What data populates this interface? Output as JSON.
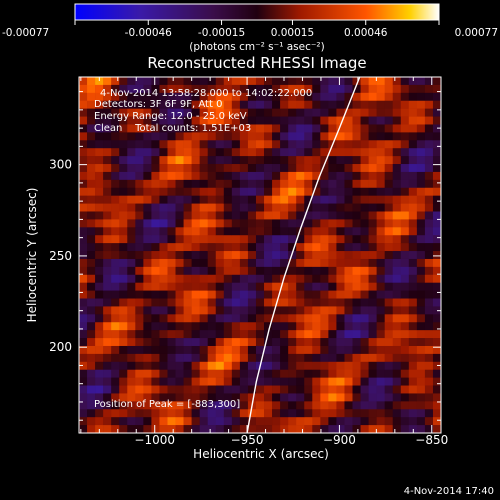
{
  "chart_data": {
    "type": "heatmap",
    "title": "Reconstructed RHESSI Image",
    "xlabel": "Heliocentric X (arcsec)",
    "ylabel": "Heliocentric Y (arcsec)",
    "xlim": [
      -1041,
      -845
    ],
    "ylim": [
      153,
      348
    ],
    "xticks": [
      -1000,
      -950,
      -900,
      -850
    ],
    "xtick_labels": [
      "−1000",
      "−950",
      "−900",
      "−850"
    ],
    "yticks": [
      200,
      250,
      300
    ],
    "ytick_labels": [
      "200",
      "250",
      "300"
    ],
    "annotations": [
      "4-Nov-2014 13:58:28.000 to 14:02:22.000",
      "Detectors: 3F 6F 9F, Att 0",
      "Energy Range: 12.0 - 25.0 keV",
      "Clean    Total counts: 1.51E+03"
    ],
    "peak_label": "Position of Peak = [-883,300]",
    "peak_position": [
      -883,
      300
    ],
    "colorbar": {
      "min": -0.00077,
      "max": 0.00077,
      "ticks": [
        -0.00077,
        -0.00046,
        -0.00015,
        0.00015,
        0.00046,
        0.00077
      ],
      "tick_labels": [
        "-0.00077",
        "-0.00046",
        "-0.00015",
        "0.00015",
        "0.00046",
        "0.00077"
      ],
      "unit_label": "(photons cm⁻² s⁻¹ asec⁻²)"
    },
    "limb_curve": {
      "x": [
        -950,
        -945,
        -938,
        -930,
        -921,
        -911,
        -900,
        -889
      ],
      "y": [
        153,
        181,
        210,
        238,
        265,
        293,
        320,
        348
      ]
    },
    "grid": false
  },
  "footer": {
    "timestamp": "4-Nov-2014 17:40"
  }
}
